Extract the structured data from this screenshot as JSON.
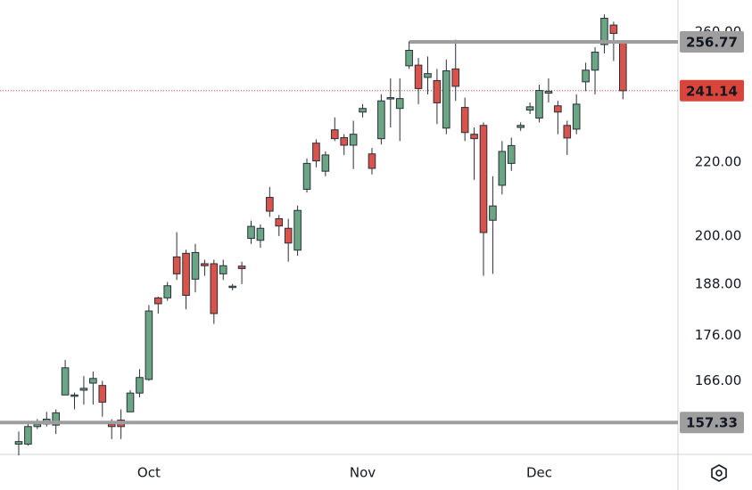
{
  "chart_data": {
    "type": "candlestick",
    "categories": [
      null,
      null,
      null,
      null,
      null,
      null,
      null,
      null,
      null,
      null,
      null,
      null,
      null,
      null,
      "Oct",
      null,
      null,
      null,
      null,
      null,
      null,
      null,
      null,
      null,
      null,
      null,
      null,
      null,
      null,
      null,
      null,
      null,
      null,
      null,
      null,
      null,
      null,
      "Nov",
      null,
      null,
      null,
      null,
      null,
      null,
      null,
      null,
      null,
      null,
      null,
      null,
      null,
      null,
      null,
      null,
      null,
      null,
      "Dec",
      null,
      null,
      null,
      null,
      null,
      null,
      null,
      null,
      null
    ],
    "series": {
      "open": [
        153,
        153,
        156.5,
        157,
        156.8,
        163,
        162.8,
        164,
        165.5,
        165,
        157,
        157.8,
        159.5,
        163.4,
        166.3,
        184.7,
        184.7,
        194.7,
        195.6,
        189.2,
        193,
        193,
        190.5,
        187.2,
        192.4,
        199.4,
        198.9,
        210.2,
        204.5,
        202,
        196.4,
        212.4,
        225.4,
        217.4,
        229.3,
        227,
        224.8,
        234.6,
        222.3,
        226.7,
        238.7,
        235.7,
        249,
        249.2,
        245.3,
        244.3,
        229.8,
        248,
        236,
        228,
        230.6,
        204.1,
        213.5,
        219.6,
        230,
        235.2,
        232.8,
        240.4,
        236.5,
        230.6,
        229.5,
        243.9,
        247.6,
        255.9,
        262.4,
        257
      ],
      "high": [
        155.5,
        157,
        158,
        159.5,
        160,
        170.5,
        163.5,
        167,
        168,
        166,
        158,
        160,
        164,
        168.5,
        183,
        185,
        188.5,
        201,
        196.5,
        198,
        194,
        194,
        194,
        188,
        193.5,
        204,
        203,
        213,
        205.5,
        204.5,
        208,
        221,
        226.5,
        223,
        233,
        228,
        232,
        237,
        224,
        240,
        245,
        245,
        257,
        251.5,
        252,
        248,
        251,
        257.5,
        239,
        230,
        231.5,
        216,
        226,
        227,
        231.5,
        237.5,
        243,
        245,
        238,
        232,
        240,
        250,
        255,
        266,
        263.5,
        257
      ],
      "low": [
        150.8,
        152.7,
        156,
        156.5,
        155,
        163,
        160,
        161,
        161,
        158.5,
        154,
        154,
        159.5,
        162.5,
        166,
        181,
        184,
        189,
        182,
        186,
        190,
        178.6,
        189,
        186.5,
        188,
        198,
        197,
        205,
        200,
        193.5,
        195,
        211.5,
        218.5,
        216,
        226,
        222,
        218,
        233,
        216.5,
        225,
        230,
        226,
        248,
        237,
        240,
        231,
        228,
        238,
        226,
        215,
        190,
        190.5,
        211,
        217.5,
        229,
        234,
        231.5,
        237.5,
        228,
        222,
        228,
        241,
        240,
        253,
        250.5,
        238.5
      ],
      "close": [
        153.5,
        156.5,
        157,
        158,
        159.3,
        168.8,
        163,
        164.4,
        166.5,
        161.5,
        156.5,
        156.5,
        163.4,
        166.7,
        181.6,
        183.3,
        187.6,
        190.5,
        185.3,
        195.8,
        192.5,
        181,
        192.5,
        187.5,
        191.8,
        202.5,
        202,
        206.5,
        202.6,
        198.2,
        206.7,
        219.6,
        220.3,
        222,
        226.7,
        224.8,
        228,
        235.7,
        218.2,
        238,
        239,
        238.7,
        254,
        241.8,
        246.5,
        237.4,
        247.4,
        242.5,
        228.5,
        226.7,
        200.9,
        207.9,
        223,
        224.7,
        230.6,
        236.2,
        241.2,
        241,
        234.6,
        226.9,
        237,
        247.6,
        253.4,
        264.7,
        259.6,
        241.14
      ]
    },
    "up_color": "#6aa584",
    "down_color": "#d9534b",
    "log_scale": true,
    "ylim": [
      151,
      271
    ],
    "yticks": [
      {
        "value": 166,
        "label": "166.00"
      },
      {
        "value": 176,
        "label": "176.00"
      },
      {
        "value": 188,
        "label": "188.00"
      },
      {
        "value": 200,
        "label": "200.00"
      },
      {
        "value": 220,
        "label": "220.00"
      },
      {
        "value": 260,
        "label": "260.00"
      }
    ],
    "levels": [
      {
        "value": 256.77,
        "color": "#9e9e9e"
      },
      {
        "value": 157.33,
        "color": "#9e9e9e"
      }
    ],
    "last_price": {
      "value": 241.14,
      "color": "#d9453a"
    },
    "grid": false
  }
}
